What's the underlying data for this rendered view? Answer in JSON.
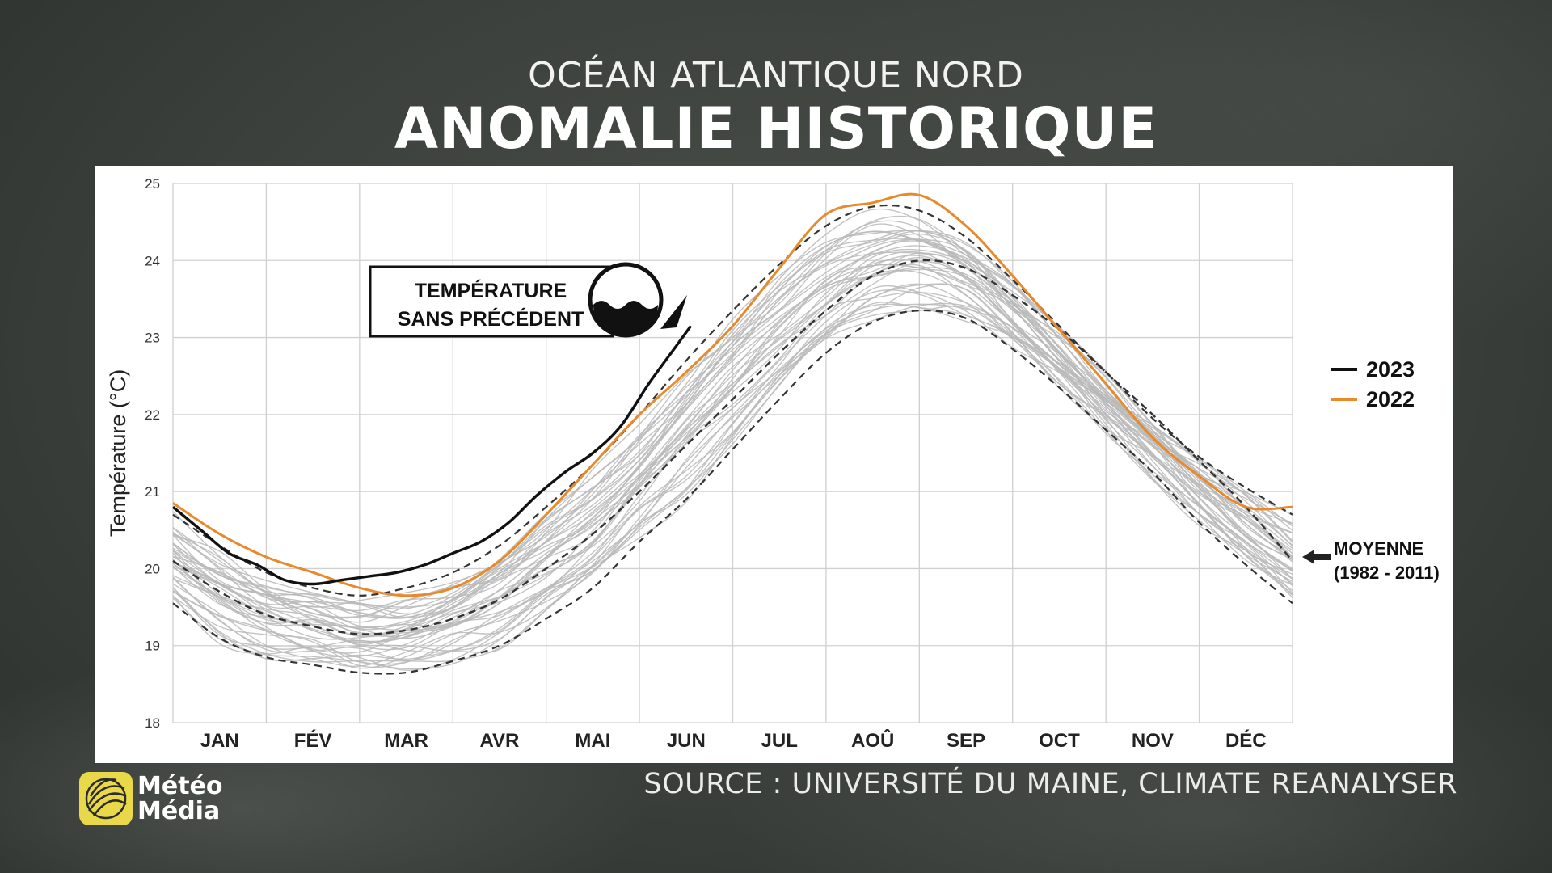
{
  "header": {
    "subtitle": "OCÉAN ATLANTIQUE NORD",
    "title": "ANOMALIE HISTORIQUE"
  },
  "footer": {
    "source": "SOURCE : UNIVERSITÉ DU MAINE, CLIMATE REANALYSER",
    "logo_line1": "Météo",
    "logo_line2": "Média"
  },
  "colors": {
    "series_2023": "#111111",
    "series_2022": "#e8892b",
    "history": "#b9b9b9",
    "mean": "#333333",
    "grid": "#d0d0d0",
    "logo_yellow": "#e9d94a"
  },
  "chart_data": {
    "type": "line",
    "ylabel": "Température (°C)",
    "ylim": [
      18,
      25
    ],
    "yticks": [
      "18",
      "19",
      "20",
      "21",
      "22",
      "23",
      "24",
      "25"
    ],
    "categories": [
      "JAN",
      "FÉV",
      "MAR",
      "AVR",
      "MAI",
      "JUN",
      "JUL",
      "AOÛ",
      "SEP",
      "OCT",
      "NOV",
      "DÉC"
    ],
    "grid": true,
    "legend_position": "right",
    "legend": [
      "2023",
      "2022"
    ],
    "annotation": {
      "line1": "TEMPÉRATURE",
      "line2": "SANS PRÉCÉDENT",
      "icon": "water-level-icon"
    },
    "mean_label": {
      "line1": "MOYENNE",
      "line2": "(1982 - 2011)"
    },
    "series": [
      {
        "name": "2023",
        "x": [
          0,
          0.3,
          0.6,
          0.9,
          1.2,
          1.5,
          1.8,
          2.1,
          2.4,
          2.7,
          3.0,
          3.3,
          3.6,
          3.9,
          4.2,
          4.5,
          4.8,
          5.1,
          5.4,
          5.55
        ],
        "y": [
          20.8,
          20.5,
          20.2,
          20.05,
          19.85,
          19.8,
          19.85,
          19.9,
          19.95,
          20.05,
          20.2,
          20.35,
          20.6,
          20.95,
          21.25,
          21.5,
          21.85,
          22.4,
          22.9,
          23.15
        ]
      },
      {
        "name": "2022",
        "x": [
          0,
          0.5,
          1.0,
          1.5,
          2.0,
          2.5,
          3.0,
          3.5,
          4.0,
          4.5,
          5.0,
          5.5,
          6.0,
          6.5,
          7.0,
          7.5,
          8.0,
          8.5,
          9.0,
          9.5,
          10.0,
          10.5,
          11.0,
          11.5,
          12.0
        ],
        "y": [
          20.85,
          20.45,
          20.15,
          19.95,
          19.75,
          19.65,
          19.75,
          20.1,
          20.7,
          21.35,
          22.0,
          22.55,
          23.15,
          23.9,
          24.6,
          24.75,
          24.85,
          24.45,
          23.8,
          23.1,
          22.4,
          21.7,
          21.2,
          20.8,
          20.8
        ]
      }
    ],
    "mean": {
      "x": [
        0,
        0.5,
        1.0,
        1.5,
        2.0,
        2.5,
        3.0,
        3.5,
        4.0,
        4.5,
        5.0,
        5.5,
        6.0,
        6.5,
        7.0,
        7.5,
        8.0,
        8.5,
        9.0,
        9.5,
        10.0,
        10.5,
        11.0,
        11.5,
        12.0
      ],
      "y": [
        20.1,
        19.7,
        19.4,
        19.25,
        19.15,
        19.2,
        19.35,
        19.6,
        20.0,
        20.45,
        21.0,
        21.6,
        22.2,
        22.8,
        23.35,
        23.8,
        24.0,
        23.9,
        23.55,
        23.1,
        22.55,
        22.0,
        21.4,
        20.8,
        20.1
      ]
    },
    "upper_bound": {
      "y": [
        20.7,
        20.3,
        19.95,
        19.75,
        19.65,
        19.75,
        19.95,
        20.3,
        20.8,
        21.35,
        22.0,
        22.7,
        23.35,
        23.95,
        24.45,
        24.7,
        24.65,
        24.3,
        23.75,
        23.15,
        22.55,
        21.95,
        21.45,
        21.05,
        20.7
      ]
    },
    "lower_bound": {
      "y": [
        19.55,
        19.1,
        18.85,
        18.75,
        18.65,
        18.65,
        18.8,
        19.0,
        19.35,
        19.75,
        20.35,
        20.9,
        21.55,
        22.2,
        22.8,
        23.2,
        23.35,
        23.25,
        22.85,
        22.35,
        21.8,
        21.25,
        20.6,
        20.05,
        19.55
      ]
    }
  }
}
